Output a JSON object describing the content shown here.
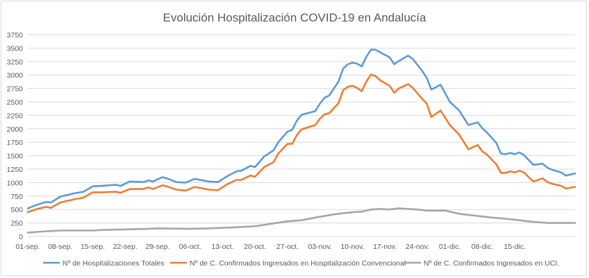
{
  "chart_data": {
    "type": "line",
    "title": "Evolución Hospitalización COVID-19 en Andalucía",
    "xlabel": "",
    "ylabel": "",
    "ylim": [
      0,
      3750
    ],
    "yticks": [
      0,
      250,
      500,
      750,
      1000,
      1250,
      1500,
      1750,
      2000,
      2250,
      2500,
      2750,
      3000,
      3250,
      3500,
      3750
    ],
    "x_tick_labels": [
      "01-sep.",
      "08-sep.",
      "15-sep.",
      "22-sep.",
      "29-sep.",
      "06-oct.",
      "13-oct.",
      "20-oct.",
      "27-oct.",
      "03-nov.",
      "10-nov.",
      "17-nov.",
      "24-nov.",
      "01-dic.",
      "08-dic.",
      "15-dic."
    ],
    "x_start": "01-sep.",
    "x_end": "22-dic.",
    "grid": true,
    "legend_position": "bottom",
    "series": [
      {
        "name": "Nº de Hospitalizaciones Totales",
        "color": "#5b9bd5",
        "points": [
          [
            "01-sep.",
            520
          ],
          [
            "03-sep.",
            590
          ],
          [
            "05-sep.",
            640
          ],
          [
            "06-sep.",
            630
          ],
          [
            "08-sep.",
            740
          ],
          [
            "11-sep.",
            800
          ],
          [
            "13-sep.",
            830
          ],
          [
            "15-sep.",
            930
          ],
          [
            "17-sep.",
            940
          ],
          [
            "20-sep.",
            960
          ],
          [
            "21-sep.",
            940
          ],
          [
            "23-sep.",
            1020
          ],
          [
            "26-sep.",
            1010
          ],
          [
            "27-sep.",
            1040
          ],
          [
            "28-sep.",
            1020
          ],
          [
            "30-sep.",
            1100
          ],
          [
            "01-oct.",
            1080
          ],
          [
            "03-oct.",
            1010
          ],
          [
            "05-oct.",
            1000
          ],
          [
            "07-oct.",
            1070
          ],
          [
            "10-oct.",
            1020
          ],
          [
            "12-oct.",
            1010
          ],
          [
            "14-oct.",
            1120
          ],
          [
            "16-oct.",
            1210
          ],
          [
            "17-oct.",
            1220
          ],
          [
            "19-oct.",
            1310
          ],
          [
            "20-oct.",
            1290
          ],
          [
            "22-oct.",
            1490
          ],
          [
            "24-oct.",
            1600
          ],
          [
            "25-oct.",
            1750
          ],
          [
            "27-oct.",
            1950
          ],
          [
            "28-oct.",
            1980
          ],
          [
            "29-oct.",
            2150
          ],
          [
            "30-oct.",
            2260
          ],
          [
            "02-nov.",
            2330
          ],
          [
            "03-nov.",
            2470
          ],
          [
            "04-nov.",
            2580
          ],
          [
            "05-nov.",
            2620
          ],
          [
            "07-nov.",
            2880
          ],
          [
            "08-nov.",
            3120
          ],
          [
            "09-nov.",
            3200
          ],
          [
            "10-nov.",
            3230
          ],
          [
            "11-nov.",
            3210
          ],
          [
            "12-nov.",
            3160
          ],
          [
            "13-nov.",
            3340
          ],
          [
            "14-nov.",
            3470
          ],
          [
            "15-nov.",
            3470
          ],
          [
            "16-nov.",
            3420
          ],
          [
            "18-nov.",
            3330
          ],
          [
            "19-nov.",
            3200
          ],
          [
            "20-nov.",
            3260
          ],
          [
            "22-nov.",
            3360
          ],
          [
            "23-nov.",
            3300
          ],
          [
            "25-nov.",
            3080
          ],
          [
            "26-nov.",
            2950
          ],
          [
            "27-nov.",
            2730
          ],
          [
            "29-nov.",
            2820
          ],
          [
            "01-dic.",
            2500
          ],
          [
            "03-dic.",
            2340
          ],
          [
            "05-dic.",
            2070
          ],
          [
            "07-dic.",
            2120
          ],
          [
            "08-dic.",
            2010
          ],
          [
            "09-dic.",
            1930
          ],
          [
            "11-dic.",
            1740
          ],
          [
            "12-dic.",
            1540
          ],
          [
            "13-dic.",
            1530
          ],
          [
            "14-dic.",
            1550
          ],
          [
            "15-dic.",
            1530
          ],
          [
            "16-dic.",
            1560
          ],
          [
            "17-dic.",
            1510
          ],
          [
            "18-dic.",
            1420
          ],
          [
            "19-dic.",
            1330
          ],
          [
            "21-dic.",
            1350
          ],
          [
            "22-dic.",
            1280
          ],
          [
            "23-dic.",
            1240
          ],
          [
            "25-dic.",
            1190
          ],
          [
            "26-dic.",
            1130
          ],
          [
            "28-dic.",
            1170
          ]
        ]
      },
      {
        "name": "Nº de C. Confirmados Ingresados en Hospitalización Convencional",
        "color": "#ed7d31",
        "points": [
          [
            "01-sep.",
            450
          ],
          [
            "03-sep.",
            510
          ],
          [
            "05-sep.",
            550
          ],
          [
            "06-sep.",
            530
          ],
          [
            "08-sep.",
            630
          ],
          [
            "11-sep.",
            690
          ],
          [
            "13-sep.",
            720
          ],
          [
            "15-sep.",
            820
          ],
          [
            "17-sep.",
            820
          ],
          [
            "20-sep.",
            830
          ],
          [
            "21-sep.",
            810
          ],
          [
            "23-sep.",
            880
          ],
          [
            "26-sep.",
            880
          ],
          [
            "27-sep.",
            910
          ],
          [
            "28-sep.",
            880
          ],
          [
            "30-sep.",
            950
          ],
          [
            "01-oct.",
            930
          ],
          [
            "03-oct.",
            870
          ],
          [
            "05-oct.",
            850
          ],
          [
            "07-oct.",
            920
          ],
          [
            "10-oct.",
            870
          ],
          [
            "12-oct.",
            860
          ],
          [
            "14-oct.",
            970
          ],
          [
            "16-oct.",
            1050
          ],
          [
            "17-oct.",
            1050
          ],
          [
            "19-oct.",
            1130
          ],
          [
            "20-oct.",
            1110
          ],
          [
            "22-oct.",
            1290
          ],
          [
            "24-oct.",
            1380
          ],
          [
            "25-oct.",
            1540
          ],
          [
            "27-oct.",
            1720
          ],
          [
            "28-oct.",
            1720
          ],
          [
            "29-oct.",
            1880
          ],
          [
            "30-oct.",
            1990
          ],
          [
            "02-nov.",
            2070
          ],
          [
            "03-nov.",
            2190
          ],
          [
            "04-nov.",
            2270
          ],
          [
            "05-nov.",
            2290
          ],
          [
            "07-nov.",
            2480
          ],
          [
            "08-nov.",
            2720
          ],
          [
            "09-nov.",
            2780
          ],
          [
            "10-nov.",
            2800
          ],
          [
            "11-nov.",
            2760
          ],
          [
            "12-nov.",
            2700
          ],
          [
            "13-nov.",
            2880
          ],
          [
            "14-nov.",
            3010
          ],
          [
            "15-nov.",
            2980
          ],
          [
            "16-nov.",
            2900
          ],
          [
            "18-nov.",
            2800
          ],
          [
            "19-nov.",
            2670
          ],
          [
            "20-nov.",
            2750
          ],
          [
            "22-nov.",
            2830
          ],
          [
            "23-nov.",
            2760
          ],
          [
            "25-nov.",
            2560
          ],
          [
            "26-nov.",
            2470
          ],
          [
            "27-nov.",
            2220
          ],
          [
            "29-nov.",
            2340
          ],
          [
            "01-dic.",
            2070
          ],
          [
            "03-dic.",
            1890
          ],
          [
            "05-dic.",
            1620
          ],
          [
            "07-dic.",
            1700
          ],
          [
            "08-dic.",
            1580
          ],
          [
            "09-dic.",
            1520
          ],
          [
            "11-dic.",
            1340
          ],
          [
            "12-dic.",
            1180
          ],
          [
            "13-dic.",
            1180
          ],
          [
            "14-dic.",
            1210
          ],
          [
            "15-dic.",
            1190
          ],
          [
            "16-dic.",
            1220
          ],
          [
            "17-dic.",
            1190
          ],
          [
            "18-dic.",
            1100
          ],
          [
            "19-dic.",
            1020
          ],
          [
            "21-dic.",
            1080
          ],
          [
            "22-dic.",
            1010
          ],
          [
            "23-dic.",
            980
          ],
          [
            "25-dic.",
            940
          ],
          [
            "26-dic.",
            890
          ],
          [
            "28-dic.",
            920
          ]
        ]
      },
      {
        "name": "Nº de C. Confirmados Ingresados en UCI.",
        "color": "#a5a5a5",
        "points": [
          [
            "01-sep.",
            70
          ],
          [
            "04-sep.",
            90
          ],
          [
            "06-sep.",
            100
          ],
          [
            "08-sep.",
            110
          ],
          [
            "15-sep.",
            110
          ],
          [
            "17-sep.",
            120
          ],
          [
            "22-sep.",
            130
          ],
          [
            "27-sep.",
            140
          ],
          [
            "29-sep.",
            150
          ],
          [
            "06-oct.",
            140
          ],
          [
            "10-oct.",
            150
          ],
          [
            "13-oct.",
            160
          ],
          [
            "16-oct.",
            170
          ],
          [
            "20-oct.",
            190
          ],
          [
            "23-oct.",
            230
          ],
          [
            "27-oct.",
            280
          ],
          [
            "30-oct.",
            300
          ],
          [
            "02-nov.",
            350
          ],
          [
            "06-nov.",
            410
          ],
          [
            "10-nov.",
            450
          ],
          [
            "12-nov.",
            460
          ],
          [
            "14-nov.",
            500
          ],
          [
            "16-nov.",
            510
          ],
          [
            "18-nov.",
            500
          ],
          [
            "20-nov.",
            520
          ],
          [
            "24-nov.",
            500
          ],
          [
            "26-nov.",
            480
          ],
          [
            "30-nov.",
            480
          ],
          [
            "03-dic.",
            420
          ],
          [
            "06-dic.",
            390
          ],
          [
            "10-dic.",
            350
          ],
          [
            "13-dic.",
            330
          ],
          [
            "16-dic.",
            300
          ],
          [
            "19-dic.",
            270
          ],
          [
            "22-dic.",
            250
          ],
          [
            "25-dic.",
            250
          ],
          [
            "28-dic.",
            250
          ]
        ]
      }
    ]
  }
}
